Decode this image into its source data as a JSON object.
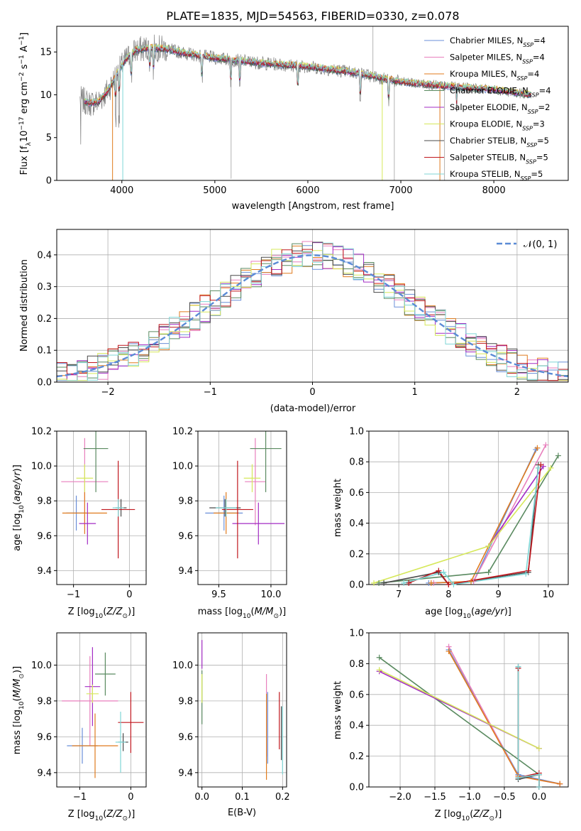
{
  "colors": {
    "Chabrier MILES": "#6a8fd8",
    "Salpeter MILES": "#e87fbd",
    "Kroupa MILES": "#e07b1e",
    "Chabrier ELODIE": "#5a8a60",
    "Salpeter ELODIE": "#a32cc4",
    "Kroupa ELODIE": "#d6e85a",
    "Chabrier STELIB": "#4a4a4a",
    "Salpeter STELIB": "#c0171e",
    "Kroupa STELIB": "#7fd6d6",
    "spectrum": "#808080",
    "normal": "#5b8bd6"
  },
  "chart_data": [
    {
      "type": "line",
      "title": "PLATE=1835, MJD=54563, FIBERID=0330, z=0.078",
      "xlabel": "wavelength [Angstrom, rest frame]",
      "ylabel": "Flux [f_λ10^-17 erg cm^-2 s^-1 A^-1]",
      "xlim": [
        3300,
        8800
      ],
      "ylim": [
        0,
        18
      ],
      "xticks": [
        4000,
        5000,
        6000,
        7000,
        8000
      ],
      "yticks": [
        0,
        5,
        10,
        15
      ],
      "legend_position": "top-right",
      "legend": [
        {
          "name": "Chabrier MILES",
          "nssp": "4"
        },
        {
          "name": "Salpeter MILES",
          "nssp": "4"
        },
        {
          "name": "Kroupa MILES",
          "nssp": "4"
        },
        {
          "name": "Chabrier ELODIE",
          "nssp": "4"
        },
        {
          "name": "Salpeter ELODIE",
          "nssp": "2"
        },
        {
          "name": "Kroupa ELODIE",
          "nssp": "3"
        },
        {
          "name": "Chabrier STELIB",
          "nssp": "5"
        },
        {
          "name": "Salpeter STELIB",
          "nssp": "5"
        },
        {
          "name": "Kroupa STELIB",
          "nssp": "5"
        }
      ],
      "continuum": {
        "x": [
          3550,
          3650,
          3750,
          3850,
          3950,
          4050,
          4150,
          4300,
          4500,
          4700,
          5000,
          5500,
          6000,
          6500,
          7000,
          7500,
          8000,
          8400
        ],
        "y": [
          9.5,
          9.0,
          9.2,
          10.5,
          12.5,
          14.2,
          15.2,
          15.5,
          15.3,
          14.8,
          14.3,
          13.7,
          13.3,
          12.6,
          11.5,
          11.0,
          10.6,
          10.0
        ]
      }
    },
    {
      "type": "step",
      "xlabel": "(data-model)/error",
      "ylabel": "Normed distribution",
      "xlim": [
        -2.5,
        2.5
      ],
      "ylim": [
        0,
        0.48
      ],
      "xticks": [
        -2,
        -1,
        0,
        1,
        2
      ],
      "yticks": [
        0.0,
        0.1,
        0.2,
        0.3,
        0.4
      ],
      "legend_position": "top-right",
      "legend_label": "𝒩(0, 1)",
      "bin_width": 0.1
    },
    {
      "type": "scatter",
      "xlabel": "Z [log10(Z/Z☉)]",
      "ylabel": "age  [log10(age/yr)]",
      "xlim": [
        -1.3,
        0.3
      ],
      "ylim": [
        9.32,
        10.2
      ],
      "xticks": [
        -1,
        0
      ],
      "yticks": [
        9.4,
        9.6,
        9.8,
        10.0,
        10.2
      ],
      "points": [
        {
          "series": "Chabrier MILES",
          "x": -0.95,
          "xerr": 0.18,
          "y": 9.73,
          "yerr": 0.1
        },
        {
          "series": "Salpeter MILES",
          "x": -0.8,
          "xerr": 0.42,
          "y": 9.91,
          "yerr": 0.25
        },
        {
          "series": "Kroupa MILES",
          "x": -0.8,
          "xerr": 0.4,
          "y": 9.73,
          "yerr": 0.12
        },
        {
          "series": "Chabrier ELODIE",
          "x": -0.6,
          "xerr": 0.22,
          "y": 10.1,
          "yerr": 0.25
        },
        {
          "series": "Salpeter ELODIE",
          "x": -0.75,
          "xerr": 0.15,
          "y": 9.67,
          "yerr": 0.12
        },
        {
          "series": "Kroupa ELODIE",
          "x": -0.8,
          "xerr": 0.15,
          "y": 9.93,
          "yerr": 0.08
        },
        {
          "series": "Chabrier STELIB",
          "x": -0.15,
          "xerr": 0.1,
          "y": 9.76,
          "yerr": 0.05
        },
        {
          "series": "Salpeter STELIB",
          "x": -0.2,
          "xerr": 0.3,
          "y": 9.75,
          "yerr": 0.28
        },
        {
          "series": "Kroupa STELIB",
          "x": -0.2,
          "xerr": 0.1,
          "y": 9.76,
          "yerr": 0.05
        }
      ]
    },
    {
      "type": "scatter",
      "xlabel": "mass [log10(M/M☉)]",
      "ylabel": "",
      "xlim": [
        9.3,
        10.15
      ],
      "ylim": [
        9.32,
        10.2
      ],
      "xticks": [
        9.5,
        10.0
      ],
      "yticks": [
        9.4,
        9.6,
        9.8,
        10.0,
        10.2
      ],
      "points": [
        {
          "series": "Chabrier MILES",
          "x": 9.55,
          "xerr": 0.18,
          "y": 9.73,
          "yerr": 0.1
        },
        {
          "series": "Salpeter MILES",
          "x": 9.85,
          "xerr": 0.1,
          "y": 9.91,
          "yerr": 0.25
        },
        {
          "series": "Kroupa MILES",
          "x": 9.57,
          "xerr": 0.12,
          "y": 9.73,
          "yerr": 0.12
        },
        {
          "series": "Chabrier ELODIE",
          "x": 9.95,
          "xerr": 0.15,
          "y": 10.1,
          "yerr": 0.25
        },
        {
          "series": "Salpeter ELODIE",
          "x": 9.88,
          "xerr": 0.25,
          "y": 9.67,
          "yerr": 0.12
        },
        {
          "series": "Kroupa ELODIE",
          "x": 9.82,
          "xerr": 0.08,
          "y": 9.93,
          "yerr": 0.08
        },
        {
          "series": "Chabrier STELIB",
          "x": 9.56,
          "xerr": 0.15,
          "y": 9.76,
          "yerr": 0.05
        },
        {
          "series": "Salpeter STELIB",
          "x": 9.68,
          "xerr": 0.15,
          "y": 9.75,
          "yerr": 0.28
        },
        {
          "series": "Kroupa STELIB",
          "x": 9.57,
          "xerr": 0.1,
          "y": 9.76,
          "yerr": 0.05
        }
      ]
    },
    {
      "type": "line",
      "xlabel": "age  [log10(age/yr)]",
      "ylabel": "mass weight",
      "xlim": [
        6.4,
        10.4
      ],
      "ylim": [
        0,
        1.0
      ],
      "xticks": [
        7,
        8,
        9,
        10
      ],
      "yticks": [
        0.0,
        0.2,
        0.4,
        0.6,
        0.8,
        1.0
      ],
      "series": [
        {
          "name": "Chabrier MILES",
          "x": [
            7.6,
            8.5,
            9.75
          ],
          "y": [
            0.01,
            0.02,
            0.88
          ]
        },
        {
          "name": "Salpeter MILES",
          "x": [
            7.7,
            8.5,
            9.95
          ],
          "y": [
            0.01,
            0.02,
            0.91
          ]
        },
        {
          "name": "Kroupa MILES",
          "x": [
            7.65,
            8.45,
            9.78
          ],
          "y": [
            0.01,
            0.02,
            0.89
          ]
        },
        {
          "name": "Chabrier ELODIE",
          "x": [
            6.6,
            8.8,
            10.2
          ],
          "y": [
            0.01,
            0.08,
            0.84
          ]
        },
        {
          "name": "Salpeter ELODIE",
          "x": [
            8.8,
            9.9
          ],
          "y": [
            0.25,
            0.77
          ]
        },
        {
          "name": "Kroupa ELODIE",
          "x": [
            6.5,
            8.8,
            10.05
          ],
          "y": [
            0.01,
            0.25,
            0.76
          ]
        },
        {
          "name": "Chabrier STELIB",
          "x": [
            6.7,
            7.8,
            8.0,
            9.6,
            9.8
          ],
          "y": [
            0.01,
            0.08,
            0.0,
            0.08,
            0.78
          ]
        },
        {
          "name": "Salpeter STELIB",
          "x": [
            7.2,
            7.8,
            8.0,
            9.6,
            9.85
          ],
          "y": [
            0.01,
            0.09,
            0.0,
            0.09,
            0.78
          ]
        },
        {
          "name": "Kroupa STELIB",
          "x": [
            7.1,
            7.9,
            8.1,
            9.55,
            9.8
          ],
          "y": [
            0.01,
            0.08,
            0.0,
            0.07,
            0.76
          ]
        }
      ]
    },
    {
      "type": "scatter",
      "xlabel": "Z [log10(Z/Z☉)]",
      "ylabel": "mass [log10(M/M☉)]",
      "xlim": [
        -1.45,
        0.3
      ],
      "ylim": [
        9.32,
        10.18
      ],
      "xticks": [
        -1,
        0
      ],
      "yticks": [
        9.4,
        9.6,
        9.8,
        10.0
      ],
      "points": [
        {
          "series": "Chabrier MILES",
          "x": -0.95,
          "xerr": 0.3,
          "y": 9.55,
          "yerr": 0.1
        },
        {
          "series": "Salpeter MILES",
          "x": -0.8,
          "xerr": 0.55,
          "y": 9.8,
          "yerr": 0.25
        },
        {
          "series": "Kroupa MILES",
          "x": -0.7,
          "xerr": 0.45,
          "y": 9.55,
          "yerr": 0.18
        },
        {
          "series": "Chabrier ELODIE",
          "x": -0.5,
          "xerr": 0.2,
          "y": 9.95,
          "yerr": 0.12
        },
        {
          "series": "Salpeter ELODIE",
          "x": -0.75,
          "xerr": 0.15,
          "y": 9.88,
          "yerr": 0.22
        },
        {
          "series": "Kroupa ELODIE",
          "x": -0.75,
          "xerr": 0.12,
          "y": 9.84,
          "yerr": 0.05
        },
        {
          "series": "Chabrier STELIB",
          "x": -0.15,
          "xerr": 0.1,
          "y": 9.57,
          "yerr": 0.05
        },
        {
          "series": "Salpeter STELIB",
          "x": 0.0,
          "xerr": 0.25,
          "y": 9.68,
          "yerr": 0.17
        },
        {
          "series": "Kroupa STELIB",
          "x": -0.2,
          "xerr": 0.1,
          "y": 9.57,
          "yerr": 0.17
        }
      ]
    },
    {
      "type": "scatter",
      "xlabel": "E(B-V)",
      "ylabel": "",
      "xlim": [
        -0.01,
        0.21
      ],
      "ylim": [
        9.32,
        10.18
      ],
      "xticks": [
        0.0,
        0.1,
        0.2
      ],
      "yticks": [
        9.4,
        9.6,
        9.8,
        10.0
      ],
      "points": [
        {
          "series": "Chabrier ELODIE",
          "x": 0.0,
          "y": 9.82,
          "yerr": 0.15
        },
        {
          "series": "Salpeter ELODIE",
          "x": 0.0,
          "y": 10.06,
          "yerr": 0.08
        },
        {
          "series": "Kroupa ELODIE",
          "x": 0.0,
          "y": 9.87,
          "yerr": 0.08
        },
        {
          "series": "Salpeter MILES",
          "x": 0.16,
          "y": 9.72,
          "yerr": 0.23
        },
        {
          "series": "Kroupa MILES",
          "x": 0.16,
          "y": 9.6,
          "yerr": 0.24
        },
        {
          "series": "Chabrier MILES",
          "x": 0.163,
          "y": 9.65,
          "yerr": 0.2
        },
        {
          "series": "Salpeter STELIB",
          "x": 0.192,
          "y": 9.69,
          "yerr": 0.16
        },
        {
          "series": "Chabrier STELIB",
          "x": 0.197,
          "y": 9.62,
          "yerr": 0.15
        },
        {
          "series": "Kroupa STELIB",
          "x": 0.2,
          "y": 9.58,
          "yerr": 0.19
        }
      ]
    },
    {
      "type": "line",
      "xlabel": "Z [log10(Z/Z☉)]",
      "ylabel": "mass weight",
      "xlim": [
        -2.45,
        0.42
      ],
      "ylim": [
        0,
        1.0
      ],
      "xticks": [
        -2.0,
        -1.5,
        -1.0,
        -0.5,
        0.0
      ],
      "yticks": [
        0.0,
        0.2,
        0.4,
        0.6,
        0.8,
        1.0
      ],
      "series": [
        {
          "name": "Chabrier MILES",
          "x": [
            -1.3,
            -0.3,
            0.3
          ],
          "y": [
            0.89,
            0.08,
            0.02
          ]
        },
        {
          "name": "Salpeter MILES",
          "x": [
            -1.3,
            -0.3,
            0.3
          ],
          "y": [
            0.91,
            0.07,
            0.02
          ]
        },
        {
          "name": "Kroupa MILES",
          "x": [
            -1.3,
            -0.3,
            0.3
          ],
          "y": [
            0.88,
            0.07,
            0.02
          ]
        },
        {
          "name": "Chabrier ELODIE",
          "x": [
            -2.3,
            0.0
          ],
          "y": [
            0.84,
            0.08
          ]
        },
        {
          "name": "Salpeter ELODIE",
          "x": [
            -2.3,
            0.0
          ],
          "y": [
            0.75,
            0.25
          ]
        },
        {
          "name": "Kroupa ELODIE",
          "x": [
            -2.3,
            0.0
          ],
          "y": [
            0.76,
            0.25
          ]
        },
        {
          "name": "Chabrier STELIB",
          "x": [
            -0.3,
            -0.3,
            0.0,
            0.0
          ],
          "y": [
            0.78,
            0.05,
            0.08,
            0.0
          ]
        },
        {
          "name": "Salpeter STELIB",
          "x": [
            -0.3,
            -0.3,
            0.0,
            0.0
          ],
          "y": [
            0.77,
            0.06,
            0.09,
            0.0
          ]
        },
        {
          "name": "Kroupa STELIB",
          "x": [
            -0.3,
            -0.3,
            0.0,
            0.0
          ],
          "y": [
            0.78,
            0.06,
            0.08,
            0.0
          ]
        }
      ]
    }
  ]
}
